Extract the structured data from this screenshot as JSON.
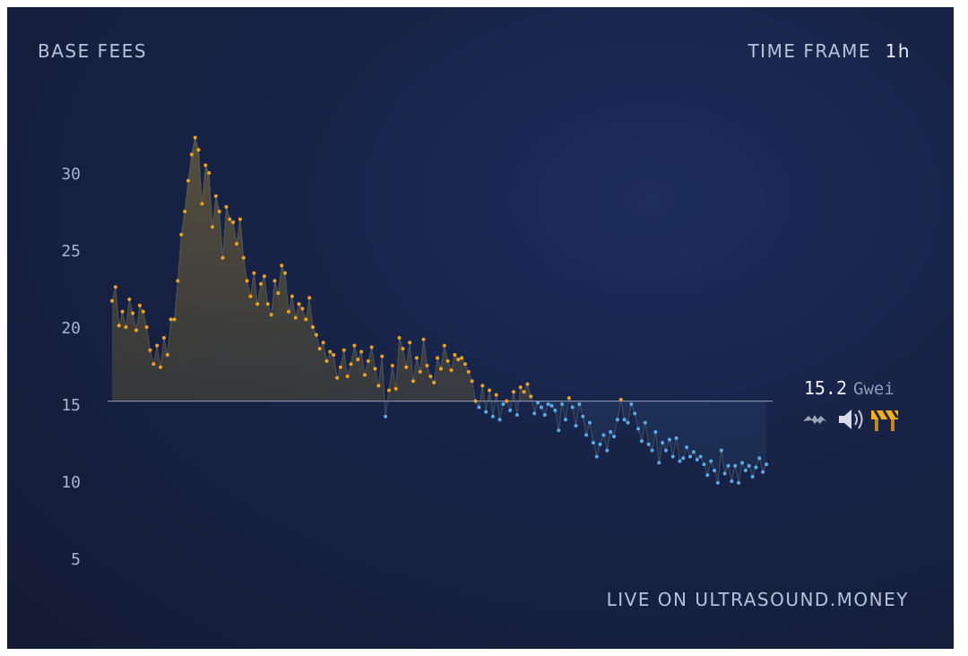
{
  "chart_data": {
    "type": "scatter-line",
    "title": "BASE FEES",
    "time_frame_label": "TIME FRAME",
    "time_frame": "1h",
    "footer": "LIVE ON ULTRASOUND.MONEY",
    "current_value": 15.2,
    "current_unit": "Gwei",
    "color_above": "#f0a21b",
    "color_below": "#5aaae8",
    "ylim": [
      3,
      33
    ],
    "yticks": [
      5,
      10,
      15,
      20,
      25,
      30
    ],
    "values": [
      21.7,
      22.6,
      20.1,
      21,
      20,
      21.8,
      20.9,
      19.8,
      21.4,
      21,
      20,
      18.5,
      17.6,
      18.8,
      17.4,
      19.3,
      18.2,
      20.5,
      20.5,
      23,
      26,
      27.5,
      29.5,
      31.2,
      32.3,
      31.5,
      28,
      30.5,
      30,
      26.5,
      28.5,
      27.5,
      24.5,
      27.8,
      27,
      26.8,
      25.4,
      27,
      24.5,
      23,
      22,
      23.5,
      21.5,
      22.8,
      23.3,
      21.5,
      20.8,
      23,
      22.2,
      24,
      23.5,
      21,
      22,
      20.6,
      21.5,
      21.2,
      20.5,
      21.9,
      20,
      19.5,
      18.6,
      19,
      17.8,
      18.4,
      18.2,
      16.7,
      17.4,
      18.5,
      16.8,
      17.6,
      18.8,
      17.9,
      18.4,
      16.9,
      17.8,
      18.7,
      17.3,
      16.2,
      18.1,
      14.2,
      15.9,
      17.5,
      16,
      19.3,
      18.6,
      17.4,
      19,
      16.5,
      18,
      17.1,
      19.2,
      17.5,
      16.8,
      16.4,
      18,
      17.3,
      18.8,
      17.8,
      17.2,
      18.2,
      17.9,
      18,
      17.6,
      17.1,
      16.5,
      15.2,
      14.8,
      16.2,
      14.5,
      15.9,
      14.2,
      15.6,
      14,
      15,
      15.2,
      14.6,
      15.8,
      14.3,
      16.1,
      15.8,
      16.3,
      15.5,
      14.4,
      15.1,
      14.8,
      14.3,
      15,
      14.9,
      14.6,
      13.3,
      15,
      14,
      15.4,
      14.8,
      13.6,
      15,
      14.2,
      13,
      13.8,
      12.5,
      11.6,
      12.4,
      13,
      12,
      13.2,
      12.9,
      14,
      15.3,
      14,
      13.8,
      15,
      14.4,
      13.4,
      12.6,
      13.8,
      12.4,
      12,
      13.2,
      11.2,
      12.5,
      12,
      12.7,
      11.6,
      12.8,
      11.3,
      11.5,
      12.2,
      11.6,
      11.9,
      11.4,
      11.6,
      11.1,
      10.4,
      11.3,
      10.7,
      9.9,
      12,
      10.5,
      11,
      10,
      11,
      9.9,
      11.2,
      10.7,
      11,
      10.3,
      10.9,
      11.5,
      10.6,
      11.1
    ]
  }
}
